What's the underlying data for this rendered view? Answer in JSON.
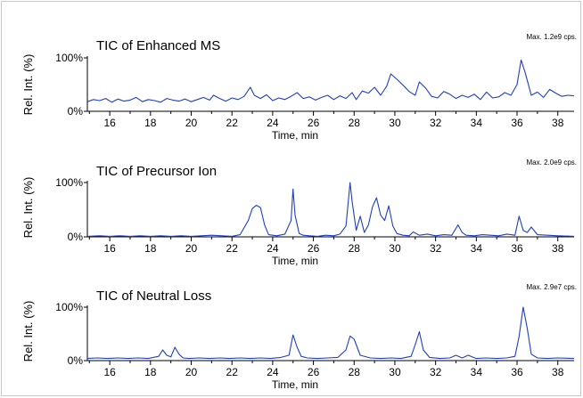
{
  "chart_data": [
    {
      "type": "line",
      "title": "TIC of Enhanced MS",
      "max_label": "Max. 1.2e9 cps.",
      "ylabel": "Rel. Int. (%)",
      "xlabel": "Time, min",
      "yticks": [
        "100%",
        "0%"
      ],
      "xticks": [
        16,
        18,
        20,
        22,
        24,
        26,
        28,
        30,
        32,
        34,
        36,
        38
      ],
      "xlim": [
        14.9,
        38.8
      ],
      "ylim": [
        0,
        100
      ],
      "color": "#1f3fbf",
      "series": [
        {
          "x": [
            14.9,
            15.2,
            15.5,
            15.8,
            16.1,
            16.4,
            16.7,
            17.0,
            17.3,
            17.6,
            17.9,
            18.2,
            18.5,
            18.8,
            19.1,
            19.4,
            19.7,
            20.0,
            20.3,
            20.6,
            20.9,
            21.1,
            21.4,
            21.7,
            22.0,
            22.3,
            22.6,
            22.9,
            23.1,
            23.4,
            23.7,
            24.0,
            24.3,
            24.6,
            24.9,
            25.2,
            25.5,
            25.8,
            26.1,
            26.4,
            26.7,
            27.0,
            27.3,
            27.6,
            27.9,
            28.1,
            28.4,
            28.7,
            29.0,
            29.3,
            29.6,
            29.8,
            30.1,
            30.4,
            30.7,
            31.0,
            31.2,
            31.5,
            31.8,
            32.1,
            32.4,
            32.7,
            33.0,
            33.3,
            33.6,
            33.9,
            34.2,
            34.5,
            34.8,
            35.1,
            35.4,
            35.7,
            36.0,
            36.2,
            36.4,
            36.7,
            37.0,
            37.3,
            37.6,
            37.9,
            38.2,
            38.5,
            38.8
          ],
          "y": [
            18,
            22,
            20,
            24,
            17,
            23,
            19,
            21,
            26,
            18,
            22,
            20,
            17,
            24,
            21,
            19,
            23,
            18,
            22,
            26,
            21,
            30,
            24,
            19,
            25,
            22,
            28,
            45,
            30,
            24,
            31,
            20,
            25,
            22,
            28,
            35,
            24,
            27,
            21,
            26,
            30,
            22,
            29,
            24,
            35,
            22,
            38,
            34,
            45,
            30,
            47,
            70,
            60,
            49,
            37,
            30,
            55,
            44,
            28,
            25,
            37,
            32,
            24,
            30,
            26,
            32,
            22,
            36,
            25,
            27,
            35,
            30,
            50,
            96,
            72,
            30,
            36,
            26,
            41,
            34,
            28,
            30,
            29
          ]
        }
      ]
    },
    {
      "type": "line",
      "title": "TIC of Precursor Ion",
      "max_label": "Max. 2.0e9 cps.",
      "ylabel": "Rel. Int. (%)",
      "xlabel": "Time, min",
      "yticks": [
        "100%",
        "0%"
      ],
      "xticks": [
        16,
        18,
        20,
        22,
        24,
        26,
        28,
        30,
        32,
        34,
        36,
        38
      ],
      "xlim": [
        14.9,
        38.8
      ],
      "ylim": [
        0,
        100
      ],
      "color": "#1f3fbf",
      "series": [
        {
          "x": [
            14.9,
            15.5,
            16.0,
            16.5,
            17.0,
            17.5,
            18.0,
            18.5,
            19.0,
            19.5,
            20.0,
            20.5,
            21.0,
            21.5,
            22.0,
            22.4,
            22.8,
            23.0,
            23.2,
            23.4,
            23.6,
            23.8,
            24.2,
            24.6,
            24.9,
            25.0,
            25.1,
            25.3,
            25.5,
            25.8,
            26.2,
            26.6,
            27.0,
            27.3,
            27.6,
            27.8,
            27.9,
            28.1,
            28.3,
            28.5,
            28.7,
            28.9,
            29.1,
            29.3,
            29.5,
            29.7,
            29.9,
            30.1,
            30.4,
            30.7,
            30.9,
            31.2,
            31.6,
            32.0,
            32.4,
            32.8,
            33.1,
            33.3,
            33.5,
            33.9,
            34.3,
            34.7,
            35.1,
            35.5,
            35.9,
            36.1,
            36.3,
            36.5,
            36.7,
            37.0,
            37.5,
            38.0,
            38.8
          ],
          "y": [
            1,
            2,
            1,
            2,
            1,
            2,
            1,
            2,
            1,
            2,
            1,
            2,
            3,
            2,
            1,
            4,
            30,
            52,
            58,
            54,
            22,
            4,
            2,
            5,
            30,
            88,
            40,
            6,
            3,
            2,
            1,
            3,
            2,
            5,
            20,
            100,
            65,
            12,
            38,
            8,
            22,
            55,
            72,
            40,
            30,
            57,
            20,
            6,
            3,
            2,
            9,
            3,
            5,
            2,
            4,
            3,
            22,
            8,
            3,
            2,
            4,
            3,
            2,
            5,
            3,
            38,
            12,
            8,
            18,
            4,
            3,
            2,
            1
          ]
        }
      ]
    },
    {
      "type": "line",
      "title": "TIC of Neutral Loss",
      "max_label": "Max. 2.9e7 cps.",
      "ylabel": "Rel. Int. (%)",
      "xlabel": "Time, min",
      "yticks": [
        "100%",
        "0%"
      ],
      "xticks": [
        16,
        18,
        20,
        22,
        24,
        26,
        28,
        30,
        32,
        34,
        36,
        38
      ],
      "xlim": [
        14.9,
        38.8
      ],
      "ylim": [
        0,
        100
      ],
      "color": "#1f3fbf",
      "series": [
        {
          "x": [
            14.9,
            15.4,
            15.9,
            16.4,
            16.9,
            17.4,
            17.9,
            18.4,
            18.6,
            18.8,
            19.0,
            19.2,
            19.4,
            19.6,
            19.9,
            20.4,
            20.9,
            21.4,
            21.9,
            22.4,
            22.9,
            23.4,
            23.9,
            24.4,
            24.8,
            25.0,
            25.2,
            25.4,
            25.7,
            26.2,
            26.7,
            27.2,
            27.6,
            27.8,
            28.0,
            28.3,
            28.8,
            29.3,
            29.8,
            30.3,
            30.8,
            31.0,
            31.2,
            31.4,
            31.7,
            32.2,
            32.7,
            33.0,
            33.3,
            33.6,
            34.0,
            34.5,
            35.0,
            35.5,
            35.9,
            36.1,
            36.3,
            36.5,
            36.7,
            37.0,
            37.5,
            38.0,
            38.8
          ],
          "y": [
            4,
            5,
            4,
            5,
            4,
            5,
            4,
            8,
            20,
            10,
            7,
            25,
            12,
            5,
            4,
            5,
            4,
            5,
            4,
            5,
            4,
            5,
            4,
            6,
            10,
            48,
            25,
            8,
            5,
            4,
            5,
            6,
            20,
            46,
            40,
            10,
            5,
            4,
            5,
            4,
            8,
            30,
            54,
            20,
            6,
            4,
            5,
            10,
            5,
            10,
            4,
            5,
            4,
            5,
            8,
            45,
            100,
            60,
            12,
            5,
            4,
            5,
            4
          ]
        }
      ]
    }
  ]
}
